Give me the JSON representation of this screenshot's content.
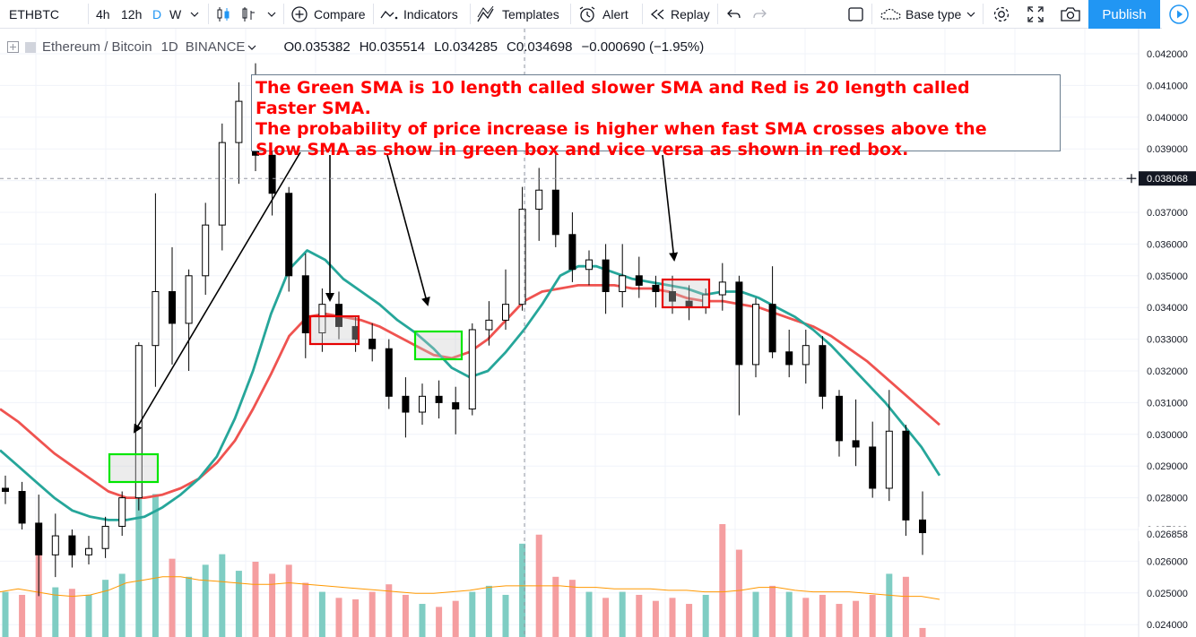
{
  "toolbar": {
    "symbol": "ETHBTC",
    "intervals": [
      "4h",
      "12h",
      "D",
      "W"
    ],
    "active_interval": "D",
    "compare_label": "Compare",
    "indicators_label": "Indicators",
    "templates_label": "Templates",
    "alert_label": "Alert",
    "replay_label": "Replay",
    "base_type_label": "Base type",
    "publish_label": "Publish",
    "colors": {
      "accent": "#2196f3",
      "active_interval": "#2196f3"
    }
  },
  "legend": {
    "title": "Ethereum / Bitcoin",
    "interval": "1D",
    "exchange": "BINANCE",
    "open_key": "O",
    "open": "0.035382",
    "high_key": "H",
    "high": "0.035514",
    "low_key": "L",
    "low": "0.034285",
    "close_key": "C",
    "close": "0.034698",
    "change": "−0.000690 (−1.95%)"
  },
  "annotation": {
    "lines": [
      "The Green SMA is 10 length called slower SMA and Red is 20 length called",
      "Faster SMA.",
      "The probability of price increase is higher when fast SMA crosses above the",
      "Slow SMA as show in green box and vice versa as shown in red box."
    ],
    "color": "#ff0000"
  },
  "chart_data": {
    "type": "candlestick",
    "y_axis": {
      "ticks": [
        "0.042000",
        "0.041000",
        "0.040000",
        "0.039000",
        "0.038000",
        "0.037000",
        "0.036000",
        "0.035000",
        "0.034000",
        "0.033000",
        "0.032000",
        "0.031000",
        "0.030000",
        "0.029000",
        "0.028000",
        "0.027000",
        "0.026000",
        "0.025000",
        "0.024000"
      ],
      "ylim": [
        0.0239,
        0.0423
      ],
      "crosshair_label": "0.038068",
      "last_price_label": "0.026858"
    },
    "series": [
      {
        "name": "SMA 10",
        "color": "#26a69a",
        "values": [
          0.0295,
          0.029,
          0.0285,
          0.028,
          0.0276,
          0.0274,
          0.0273,
          0.0273,
          0.0274,
          0.0277,
          0.0281,
          0.0286,
          0.0293,
          0.0305,
          0.032,
          0.0338,
          0.0352,
          0.0358,
          0.0355,
          0.0349,
          0.0345,
          0.0341,
          0.0336,
          0.0332,
          0.0327,
          0.0321,
          0.0318,
          0.032,
          0.0326,
          0.0333,
          0.0341,
          0.035,
          0.0353,
          0.0353,
          0.0351,
          0.0349,
          0.0348,
          0.0347,
          0.0346,
          0.0344,
          0.0345,
          0.0345,
          0.0343,
          0.034,
          0.0337,
          0.0333,
          0.0328,
          0.0322,
          0.0316,
          0.031,
          0.0303,
          0.0296,
          0.0287
        ]
      },
      {
        "name": "SMA 20",
        "color": "#ef5350",
        "values": [
          0.0308,
          0.0304,
          0.0299,
          0.0294,
          0.029,
          0.0286,
          0.0282,
          0.028,
          0.028,
          0.0281,
          0.0283,
          0.0286,
          0.0291,
          0.0298,
          0.0308,
          0.0319,
          0.0331,
          0.0337,
          0.0338,
          0.0337,
          0.0336,
          0.0334,
          0.0331,
          0.0328,
          0.0325,
          0.0324,
          0.0326,
          0.033,
          0.0336,
          0.0342,
          0.0345,
          0.0346,
          0.0347,
          0.0347,
          0.0347,
          0.0346,
          0.0346,
          0.0345,
          0.0343,
          0.0342,
          0.0342,
          0.0341,
          0.034,
          0.0338,
          0.0336,
          0.0334,
          0.0331,
          0.0327,
          0.0323,
          0.0318,
          0.0313,
          0.0308,
          0.0303
        ]
      },
      {
        "name": "Volume MA",
        "color": "#ff9800",
        "values": [
          0.3,
          0.32,
          0.3,
          0.28,
          0.27,
          0.28,
          0.31,
          0.36,
          0.38,
          0.4,
          0.4,
          0.38,
          0.37,
          0.36,
          0.35,
          0.35,
          0.36,
          0.35,
          0.34,
          0.33,
          0.32,
          0.31,
          0.3,
          0.29,
          0.29,
          0.3,
          0.31,
          0.33,
          0.34,
          0.34,
          0.34,
          0.34,
          0.33,
          0.33,
          0.32,
          0.32,
          0.32,
          0.31,
          0.31,
          0.3,
          0.3,
          0.31,
          0.33,
          0.33,
          0.31,
          0.3,
          0.3,
          0.3,
          0.29,
          0.28,
          0.27,
          0.27,
          0.25
        ]
      }
    ],
    "candles": [
      {
        "o": 0.0283,
        "h": 0.0287,
        "l": 0.0278,
        "c": 0.0282
      },
      {
        "o": 0.0282,
        "h": 0.0285,
        "l": 0.027,
        "c": 0.0272
      },
      {
        "o": 0.0272,
        "h": 0.0281,
        "l": 0.0249,
        "c": 0.0262
      },
      {
        "o": 0.0262,
        "h": 0.0275,
        "l": 0.0255,
        "c": 0.0268
      },
      {
        "o": 0.0268,
        "h": 0.027,
        "l": 0.0258,
        "c": 0.0262
      },
      {
        "o": 0.0262,
        "h": 0.0268,
        "l": 0.0259,
        "c": 0.0264
      },
      {
        "o": 0.0264,
        "h": 0.0274,
        "l": 0.0261,
        "c": 0.0271
      },
      {
        "o": 0.0271,
        "h": 0.0282,
        "l": 0.0268,
        "c": 0.028
      },
      {
        "o": 0.028,
        "h": 0.0329,
        "l": 0.0276,
        "c": 0.0328
      },
      {
        "o": 0.0328,
        "h": 0.0376,
        "l": 0.0315,
        "c": 0.0345
      },
      {
        "o": 0.0345,
        "h": 0.0359,
        "l": 0.0322,
        "c": 0.0335
      },
      {
        "o": 0.0335,
        "h": 0.0352,
        "l": 0.032,
        "c": 0.035
      },
      {
        "o": 0.035,
        "h": 0.0373,
        "l": 0.0344,
        "c": 0.0366
      },
      {
        "o": 0.0366,
        "h": 0.0398,
        "l": 0.0358,
        "c": 0.0392
      },
      {
        "o": 0.0392,
        "h": 0.0411,
        "l": 0.0379,
        "c": 0.0405
      },
      {
        "o": 0.0405,
        "h": 0.0417,
        "l": 0.0383,
        "c": 0.0388
      },
      {
        "o": 0.0388,
        "h": 0.0394,
        "l": 0.0369,
        "c": 0.0376
      },
      {
        "o": 0.0376,
        "h": 0.0378,
        "l": 0.0345,
        "c": 0.035
      },
      {
        "o": 0.035,
        "h": 0.0357,
        "l": 0.0324,
        "c": 0.0332
      },
      {
        "o": 0.0332,
        "h": 0.0346,
        "l": 0.0326,
        "c": 0.0341
      },
      {
        "o": 0.0341,
        "h": 0.0345,
        "l": 0.033,
        "c": 0.0334
      },
      {
        "o": 0.0334,
        "h": 0.0337,
        "l": 0.0326,
        "c": 0.033
      },
      {
        "o": 0.033,
        "h": 0.0335,
        "l": 0.0323,
        "c": 0.0327
      },
      {
        "o": 0.0327,
        "h": 0.033,
        "l": 0.0308,
        "c": 0.0312
      },
      {
        "o": 0.0312,
        "h": 0.0318,
        "l": 0.0299,
        "c": 0.0307
      },
      {
        "o": 0.0307,
        "h": 0.0316,
        "l": 0.0303,
        "c": 0.0312
      },
      {
        "o": 0.0312,
        "h": 0.0317,
        "l": 0.0305,
        "c": 0.031
      },
      {
        "o": 0.031,
        "h": 0.0315,
        "l": 0.03,
        "c": 0.0308
      },
      {
        "o": 0.0308,
        "h": 0.0335,
        "l": 0.0306,
        "c": 0.0333
      },
      {
        "o": 0.0333,
        "h": 0.0342,
        "l": 0.0328,
        "c": 0.0336
      },
      {
        "o": 0.0336,
        "h": 0.0352,
        "l": 0.0333,
        "c": 0.0341
      },
      {
        "o": 0.0341,
        "h": 0.0378,
        "l": 0.0339,
        "c": 0.0371
      },
      {
        "o": 0.0371,
        "h": 0.0384,
        "l": 0.0361,
        "c": 0.0377
      },
      {
        "o": 0.0377,
        "h": 0.0393,
        "l": 0.0359,
        "c": 0.0363
      },
      {
        "o": 0.0363,
        "h": 0.037,
        "l": 0.0348,
        "c": 0.0352
      },
      {
        "o": 0.0352,
        "h": 0.0358,
        "l": 0.0347,
        "c": 0.0355
      },
      {
        "o": 0.0355,
        "h": 0.036,
        "l": 0.0338,
        "c": 0.0345
      },
      {
        "o": 0.0345,
        "h": 0.036,
        "l": 0.034,
        "c": 0.035
      },
      {
        "o": 0.035,
        "h": 0.0356,
        "l": 0.0343,
        "c": 0.0347
      },
      {
        "o": 0.0347,
        "h": 0.035,
        "l": 0.034,
        "c": 0.0345
      },
      {
        "o": 0.0345,
        "h": 0.035,
        "l": 0.0338,
        "c": 0.0342
      },
      {
        "o": 0.0342,
        "h": 0.0347,
        "l": 0.0336,
        "c": 0.034
      },
      {
        "o": 0.034,
        "h": 0.0346,
        "l": 0.0338,
        "c": 0.0344
      },
      {
        "o": 0.0344,
        "h": 0.0354,
        "l": 0.0339,
        "c": 0.0348
      },
      {
        "o": 0.0348,
        "h": 0.035,
        "l": 0.0306,
        "c": 0.0322
      },
      {
        "o": 0.0322,
        "h": 0.0343,
        "l": 0.0318,
        "c": 0.0341
      },
      {
        "o": 0.0341,
        "h": 0.0353,
        "l": 0.0324,
        "c": 0.0326
      },
      {
        "o": 0.0326,
        "h": 0.0333,
        "l": 0.0318,
        "c": 0.0322
      },
      {
        "o": 0.0322,
        "h": 0.0333,
        "l": 0.0316,
        "c": 0.0328
      },
      {
        "o": 0.0328,
        "h": 0.0331,
        "l": 0.0308,
        "c": 0.0312
      },
      {
        "o": 0.0312,
        "h": 0.0314,
        "l": 0.0293,
        "c": 0.0298
      },
      {
        "o": 0.0298,
        "h": 0.0311,
        "l": 0.029,
        "c": 0.0296
      },
      {
        "o": 0.0296,
        "h": 0.0304,
        "l": 0.028,
        "c": 0.0283
      },
      {
        "o": 0.0283,
        "h": 0.0314,
        "l": 0.0279,
        "c": 0.0301
      },
      {
        "o": 0.0301,
        "h": 0.0303,
        "l": 0.0268,
        "c": 0.0273
      },
      {
        "o": 0.0273,
        "h": 0.0282,
        "l": 0.0262,
        "c": 0.0269
      }
    ],
    "volumes": [
      {
        "v": 0.3,
        "up": true
      },
      {
        "v": 0.28,
        "up": false
      },
      {
        "v": 0.55,
        "up": false
      },
      {
        "v": 0.33,
        "up": true
      },
      {
        "v": 0.32,
        "up": false
      },
      {
        "v": 0.28,
        "up": true
      },
      {
        "v": 0.38,
        "up": true
      },
      {
        "v": 0.42,
        "up": true
      },
      {
        "v": 1.0,
        "up": true
      },
      {
        "v": 0.95,
        "up": true
      },
      {
        "v": 0.52,
        "up": false
      },
      {
        "v": 0.4,
        "up": true
      },
      {
        "v": 0.48,
        "up": true
      },
      {
        "v": 0.55,
        "up": true
      },
      {
        "v": 0.44,
        "up": true
      },
      {
        "v": 0.5,
        "up": false
      },
      {
        "v": 0.42,
        "up": false
      },
      {
        "v": 0.48,
        "up": false
      },
      {
        "v": 0.36,
        "up": false
      },
      {
        "v": 0.3,
        "up": true
      },
      {
        "v": 0.26,
        "up": false
      },
      {
        "v": 0.25,
        "up": false
      },
      {
        "v": 0.3,
        "up": false
      },
      {
        "v": 0.35,
        "up": false
      },
      {
        "v": 0.28,
        "up": false
      },
      {
        "v": 0.22,
        "up": true
      },
      {
        "v": 0.2,
        "up": false
      },
      {
        "v": 0.24,
        "up": false
      },
      {
        "v": 0.3,
        "up": true
      },
      {
        "v": 0.34,
        "up": true
      },
      {
        "v": 0.28,
        "up": true
      },
      {
        "v": 0.62,
        "up": true
      },
      {
        "v": 0.68,
        "up": false
      },
      {
        "v": 0.4,
        "up": false
      },
      {
        "v": 0.38,
        "up": false
      },
      {
        "v": 0.3,
        "up": true
      },
      {
        "v": 0.26,
        "up": false
      },
      {
        "v": 0.3,
        "up": true
      },
      {
        "v": 0.28,
        "up": false
      },
      {
        "v": 0.24,
        "up": false
      },
      {
        "v": 0.26,
        "up": false
      },
      {
        "v": 0.22,
        "up": false
      },
      {
        "v": 0.28,
        "up": true
      },
      {
        "v": 0.75,
        "up": false
      },
      {
        "v": 0.58,
        "up": false
      },
      {
        "v": 0.3,
        "up": true
      },
      {
        "v": 0.34,
        "up": false
      },
      {
        "v": 0.3,
        "up": true
      },
      {
        "v": 0.26,
        "up": false
      },
      {
        "v": 0.28,
        "up": false
      },
      {
        "v": 0.22,
        "up": false
      },
      {
        "v": 0.24,
        "up": false
      },
      {
        "v": 0.28,
        "up": false
      },
      {
        "v": 0.42,
        "up": true
      },
      {
        "v": 0.4,
        "up": false
      },
      {
        "v": 0.06,
        "up": false
      }
    ],
    "signal_boxes": [
      {
        "type": "bullish",
        "color": "#00e600",
        "index": 8
      },
      {
        "type": "bearish",
        "color": "#e60000",
        "index": 21
      },
      {
        "type": "bullish",
        "color": "#00e600",
        "index": 28
      },
      {
        "type": "bearish",
        "color": "#e60000",
        "index": 41
      }
    ],
    "grid": true,
    "colors": {
      "up": "#ffffff",
      "down": "#000000",
      "vol_up": "#7fcdc3",
      "vol_down": "#f59ea0",
      "axis_text": "#131722"
    }
  }
}
